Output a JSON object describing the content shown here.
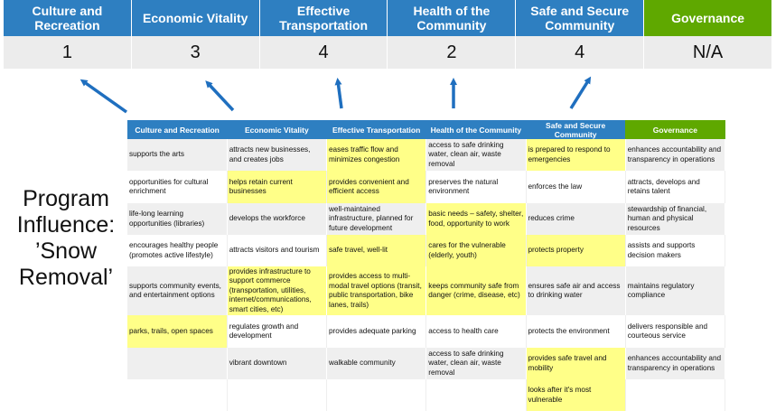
{
  "colors": {
    "blue": "#2e7fc1",
    "green": "#5fa800",
    "highlight": "#ffff88",
    "arrow": "#1f6fbf"
  },
  "summary": {
    "columns": [
      {
        "label": "Culture and Recreation",
        "score": "1",
        "color": "blue"
      },
      {
        "label": "Economic Vitality",
        "score": "3",
        "color": "blue"
      },
      {
        "label": "Effective Transportation",
        "score": "4",
        "color": "blue"
      },
      {
        "label": "Health of the Community",
        "score": "2",
        "color": "blue"
      },
      {
        "label": "Safe and Secure Community",
        "score": "4",
        "color": "blue"
      },
      {
        "label": "Governance",
        "score": "N/A",
        "color": "green"
      }
    ]
  },
  "side_label": "Program Influence: ’Snow Removal’",
  "table": {
    "headers": [
      "Culture and Recreation",
      "Economic Vitality",
      "Effective Transportation",
      "Health of the Community",
      "Safe and Secure Community",
      "Governance"
    ],
    "rows": [
      [
        {
          "t": "supports the arts"
        },
        {
          "t": "attracts new businesses, and creates jobs"
        },
        {
          "t": "eases traffic flow and minimizes congestion",
          "h": true
        },
        {
          "t": "access to safe drinking water, clean air, waste removal"
        },
        {
          "t": "is prepared to respond to emergencies",
          "h": true
        },
        {
          "t": "enhances accountability and transparency in operations"
        }
      ],
      [
        {
          "t": "opportunities for cultural enrichment"
        },
        {
          "t": "helps retain current businesses",
          "h": true
        },
        {
          "t": "provides convenient and efficient access",
          "h": true
        },
        {
          "t": "preserves the natural environment"
        },
        {
          "t": "enforces the law"
        },
        {
          "t": "attracts, develops and retains talent"
        }
      ],
      [
        {
          "t": "life-long learning opportunities (libraries)"
        },
        {
          "t": "develops the workforce"
        },
        {
          "t": "well-maintained infrastructure, planned for future development"
        },
        {
          "t": "basic needs – safety, shelter, food, opportunity to work",
          "h": true
        },
        {
          "t": "reduces crime"
        },
        {
          "t": "stewardship of financial, human and physical resources"
        }
      ],
      [
        {
          "t": "encourages healthy people (promotes active lifestyle)"
        },
        {
          "t": "attracts visitors and tourism"
        },
        {
          "t": "safe travel, well-lit",
          "h": true
        },
        {
          "t": "cares for the vulnerable (elderly, youth)",
          "h": true
        },
        {
          "t": "protects property",
          "h": true
        },
        {
          "t": "assists and supports decision makers"
        }
      ],
      [
        {
          "t": "supports community events, and entertainment options"
        },
        {
          "t": "provides infrastructure to support commerce (transportation, utilities, internet/communications, smart cities, etc)",
          "h": true
        },
        {
          "t": "provides access to multi-modal travel options (transit, public transportation, bike lanes, trails)",
          "h": true
        },
        {
          "t": "keeps community safe from danger (crime, disease, etc)",
          "h": true
        },
        {
          "t": "ensures safe air and access to drinking water"
        },
        {
          "t": "maintains regulatory compliance"
        }
      ],
      [
        {
          "t": "parks, trails, open spaces",
          "h": true
        },
        {
          "t": "regulates growth and development"
        },
        {
          "t": "provides adequate parking"
        },
        {
          "t": "access to health care"
        },
        {
          "t": "protects the environment"
        },
        {
          "t": "delivers responsible and courteous service"
        }
      ],
      [
        {
          "t": ""
        },
        {
          "t": "vibrant downtown"
        },
        {
          "t": "walkable community"
        },
        {
          "t": "access to safe drinking water, clean air, waste removal"
        },
        {
          "t": "provides safe travel and mobility",
          "h": true
        },
        {
          "t": "enhances accountability and transparency in operations"
        }
      ],
      [
        {
          "t": ""
        },
        {
          "t": ""
        },
        {
          "t": ""
        },
        {
          "t": ""
        },
        {
          "t": "looks after it's most vulnerable",
          "h": true
        },
        {
          "t": ""
        }
      ]
    ]
  }
}
